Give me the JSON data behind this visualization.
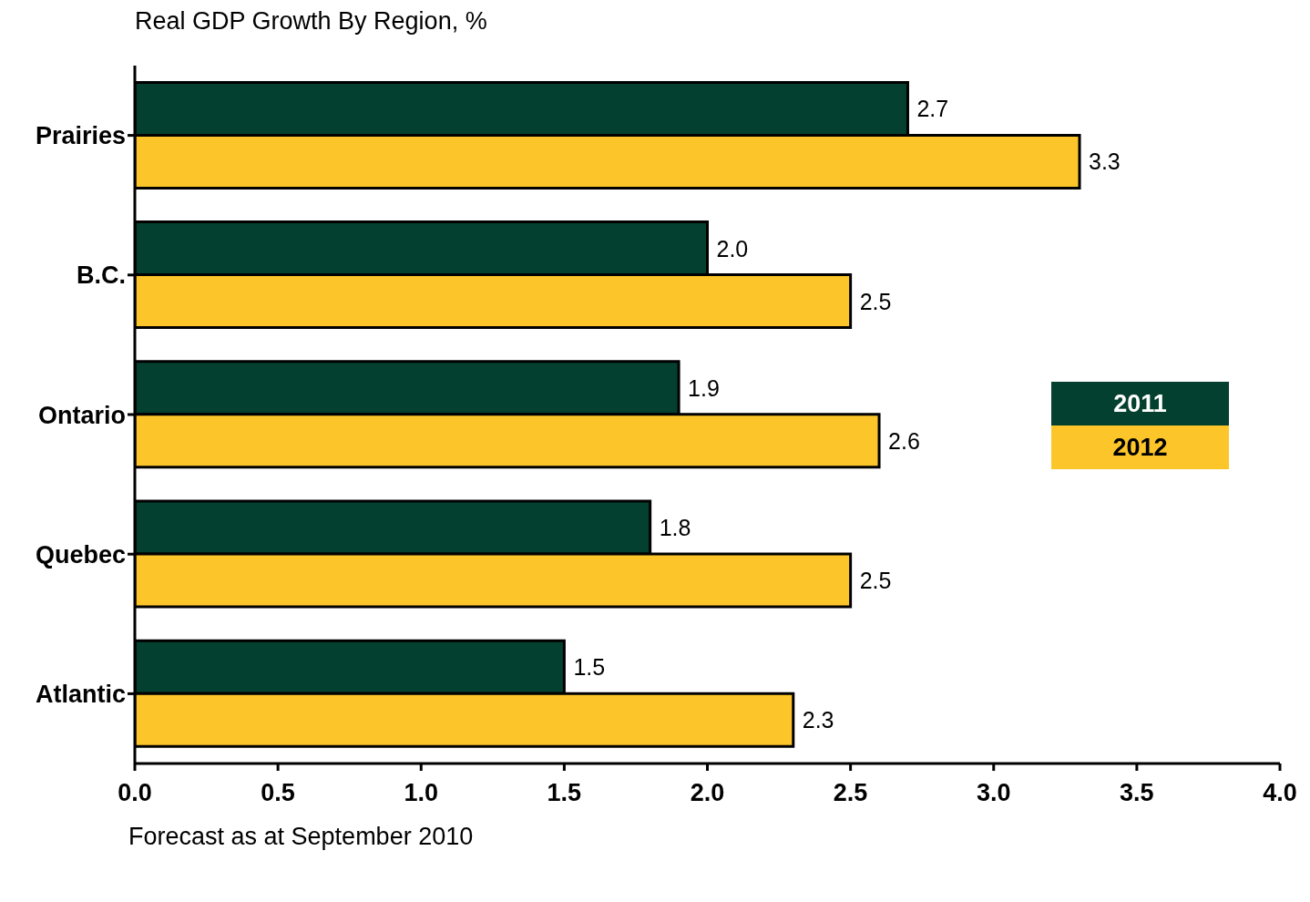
{
  "chart_data": {
    "type": "bar",
    "orientation": "horizontal",
    "title": "Real GDP Growth By Region, %",
    "categories": [
      "Prairies",
      "B.C.",
      "Ontario",
      "Quebec",
      "Atlantic"
    ],
    "series": [
      {
        "name": "2011",
        "color": "#03402f",
        "values": [
          2.7,
          2.0,
          1.9,
          1.8,
          1.5
        ],
        "value_labels": [
          "2.7",
          "2.0",
          "1.9",
          "1.8",
          "1.5"
        ]
      },
      {
        "name": "2012",
        "color": "#fcc62a",
        "values": [
          3.3,
          2.5,
          2.6,
          2.5,
          2.3
        ],
        "value_labels": [
          "3.3",
          "2.5",
          "2.6",
          "2.5",
          "2.3"
        ]
      }
    ],
    "xlim": [
      0,
      4
    ],
    "xticks": [
      {
        "value": 0,
        "label": "0.0"
      },
      {
        "value": 0.5,
        "label": "0.5"
      },
      {
        "value": 1,
        "label": "1.0"
      },
      {
        "value": 1.5,
        "label": "1.5"
      },
      {
        "value": 2,
        "label": "2.0"
      },
      {
        "value": 2.5,
        "label": "2.5"
      },
      {
        "value": 3,
        "label": "3.0"
      },
      {
        "value": 3.5,
        "label": "3.5"
      },
      {
        "value": 4,
        "label": "4.0"
      }
    ],
    "grid": false,
    "legend": "right",
    "annotations": [
      "Forecast as at September 2010"
    ]
  }
}
